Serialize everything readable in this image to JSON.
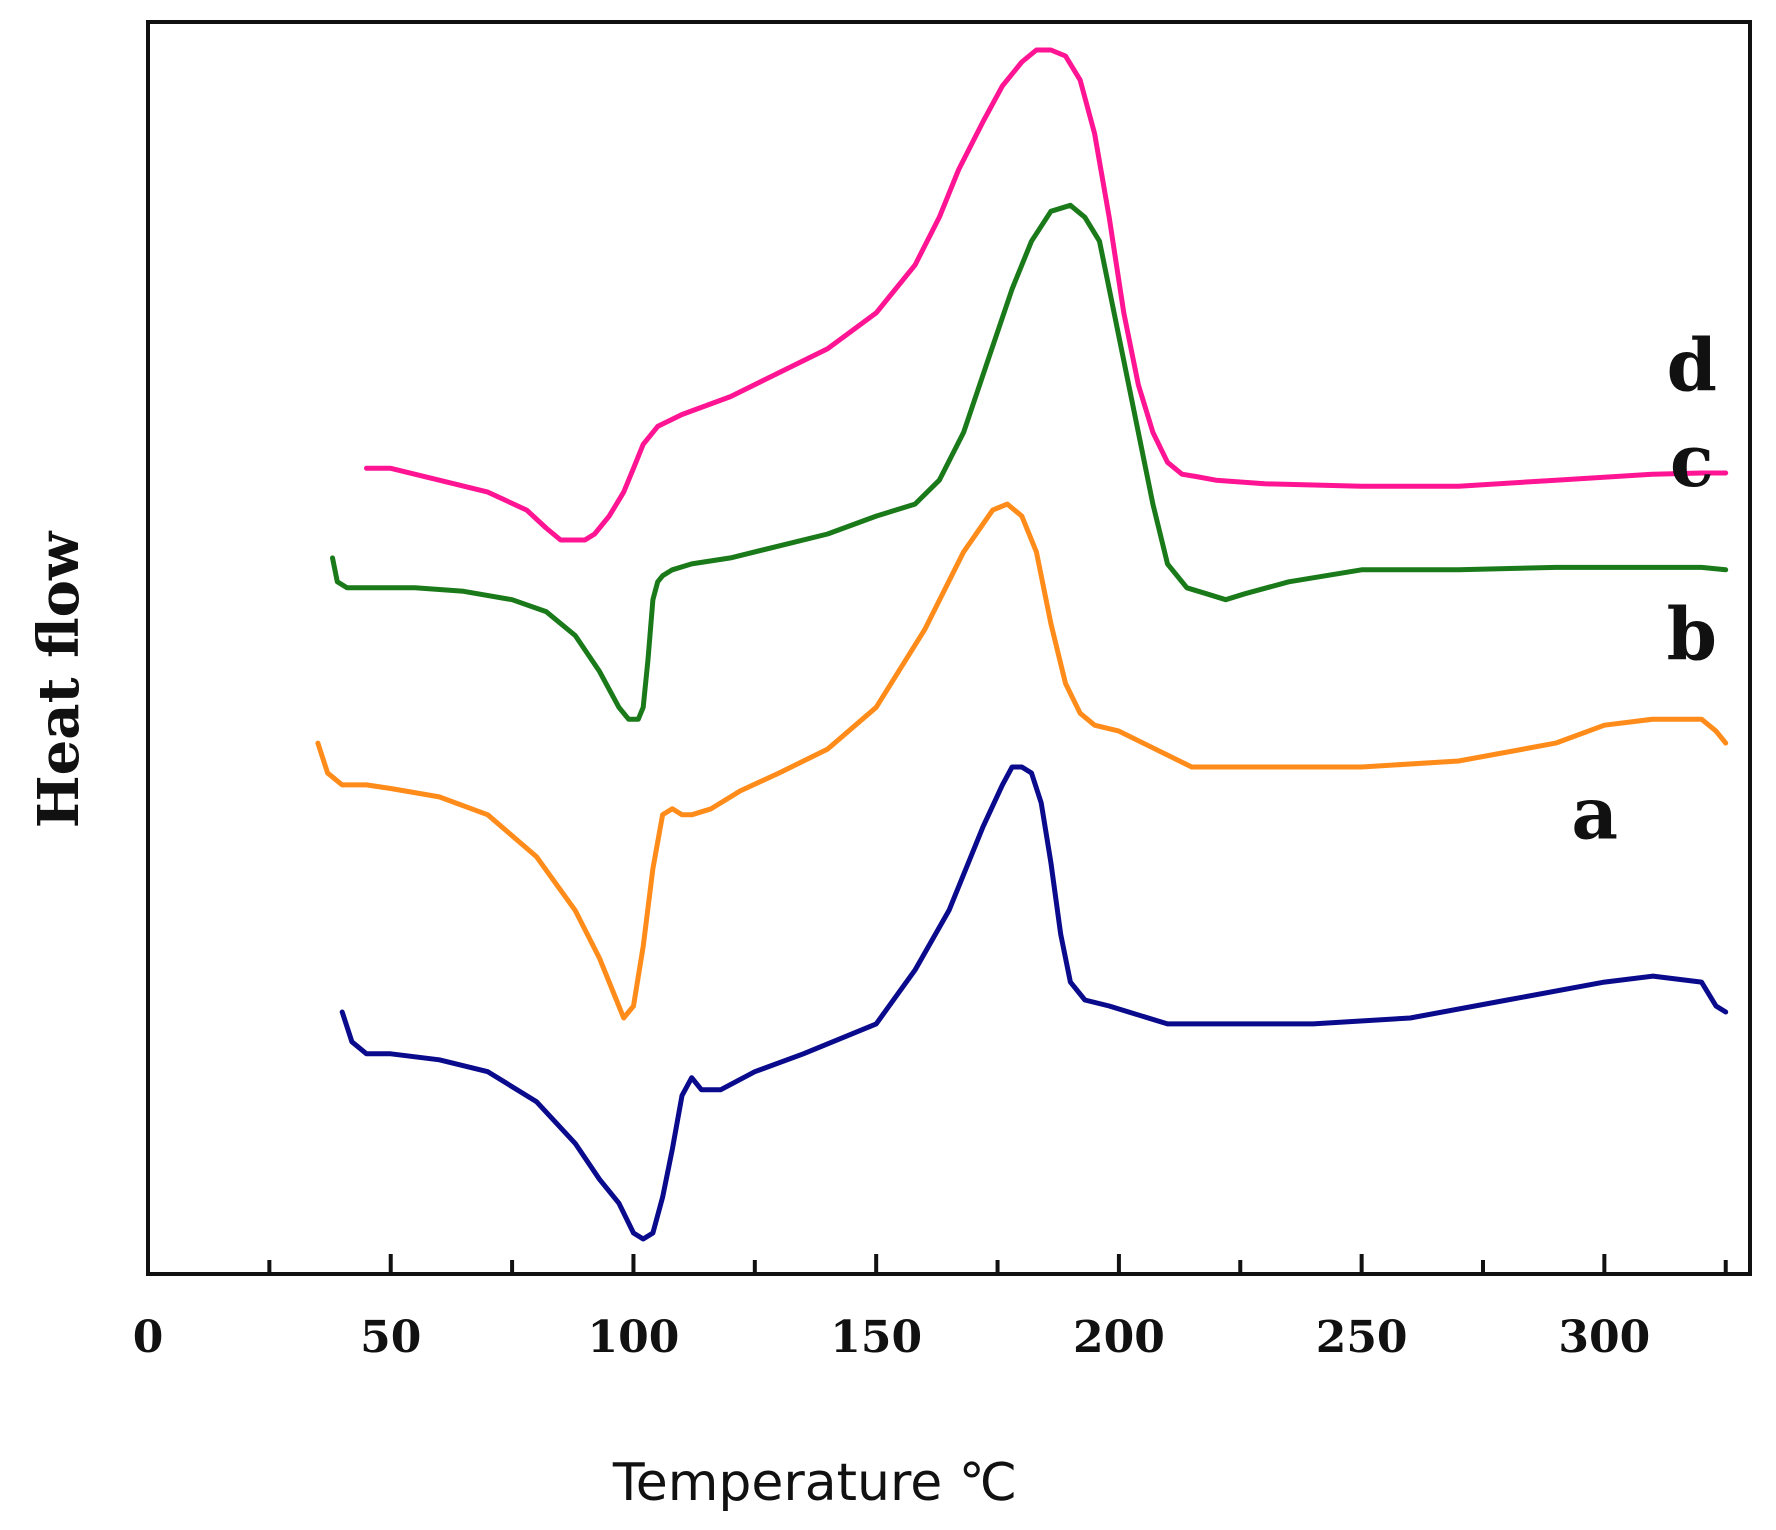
{
  "chart_data": {
    "type": "line",
    "title": "",
    "xlabel": "Temperature ℃",
    "ylabel": "Heat flow",
    "xlim": [
      0,
      330
    ],
    "ylim": [
      0,
      100
    ],
    "xticks": [
      "0",
      "50",
      "100",
      "150",
      "200",
      "250",
      "300"
    ],
    "grid": false,
    "series": [
      {
        "name": "a",
        "color": "#0a0a8c",
        "x": [
          40,
          42,
          45,
          50,
          60,
          70,
          80,
          88,
          93,
          97,
          100,
          102,
          104,
          106,
          108,
          110,
          112,
          114,
          118,
          125,
          135,
          150,
          158,
          165,
          172,
          176,
          178,
          180,
          182,
          184,
          186,
          188,
          190,
          193,
          198,
          210,
          220,
          240,
          260,
          280,
          300,
          310,
          320,
          323,
          325
        ],
        "y": [
          19.5,
          17,
          16,
          16,
          15.5,
          14.5,
          12,
          8.5,
          5.5,
          3.5,
          1,
          0.5,
          1,
          4,
          8,
          12.5,
          14,
          13,
          13,
          14.5,
          16,
          18.5,
          23,
          28,
          35,
          38.5,
          40,
          40,
          39.5,
          37,
          32,
          26,
          22,
          20.5,
          20,
          18.5,
          18.5,
          18.5,
          19,
          20.5,
          22,
          22.5,
          22,
          20,
          19.5
        ]
      },
      {
        "name": "b",
        "color": "#ff8c1a",
        "x": [
          35,
          37,
          40,
          45,
          50,
          60,
          70,
          80,
          88,
          93,
          96,
          98,
          100,
          102,
          104,
          106,
          108,
          110,
          112,
          116,
          122,
          130,
          140,
          150,
          160,
          168,
          174,
          177,
          180,
          183,
          186,
          189,
          192,
          195,
          200,
          215,
          230,
          250,
          270,
          290,
          300,
          310,
          320,
          323,
          325
        ],
        "y": [
          42,
          39.5,
          38.5,
          38.5,
          38.2,
          37.5,
          36,
          32.5,
          28,
          24,
          21,
          19,
          20,
          25,
          31.5,
          36,
          36.5,
          36,
          36,
          36.5,
          38,
          39.5,
          41.5,
          45,
          51.5,
          58,
          61.5,
          62,
          61,
          58,
          52,
          47,
          44.5,
          43.5,
          43,
          40,
          40,
          40,
          40.5,
          42,
          43.5,
          44,
          44,
          43,
          42
        ]
      },
      {
        "name": "c",
        "color": "#1a7a1a",
        "x": [
          38,
          39,
          41,
          45,
          55,
          65,
          75,
          82,
          88,
          93,
          97,
          99,
          101,
          102,
          103,
          104,
          105,
          106,
          108,
          112,
          120,
          130,
          140,
          150,
          158,
          163,
          168,
          173,
          178,
          182,
          186,
          190,
          193,
          196,
          199,
          203,
          207,
          210,
          214,
          218,
          222,
          226,
          235,
          250,
          270,
          290,
          310,
          320,
          325
        ],
        "y": [
          57.5,
          55.5,
          55,
          55,
          55,
          54.7,
          54,
          53,
          51,
          48,
          45,
          44,
          44,
          45,
          49,
          54,
          55.5,
          56,
          56.5,
          57,
          57.5,
          58.5,
          59.5,
          61,
          62,
          64,
          68,
          74,
          80,
          84,
          86.5,
          87,
          86,
          84,
          78,
          70,
          62,
          57,
          55,
          54.5,
          54,
          54.5,
          55.5,
          56.5,
          56.5,
          56.7,
          56.7,
          56.7,
          56.5
        ]
      },
      {
        "name": "d",
        "color": "#ff1493",
        "x": [
          45,
          50,
          60,
          70,
          78,
          82,
          85,
          88,
          90,
          92,
          95,
          98,
          100,
          102,
          105,
          110,
          120,
          130,
          140,
          150,
          158,
          163,
          167,
          172,
          176,
          180,
          183,
          186,
          189,
          192,
          195,
          198,
          201,
          204,
          207,
          210,
          213,
          216,
          220,
          230,
          250,
          270,
          290,
          310,
          320,
          325
        ],
        "y": [
          65,
          65,
          64,
          63,
          61.5,
          60,
          59,
          59,
          59,
          59.5,
          61,
          63,
          65,
          67,
          68.5,
          69.5,
          71,
          73,
          75,
          78,
          82,
          86,
          90,
          94,
          97,
          99,
          100,
          100,
          99.5,
          97.5,
          93,
          86,
          78,
          72,
          68,
          65.5,
          64.5,
          64.3,
          64,
          63.7,
          63.5,
          63.5,
          64,
          64.5,
          64.6,
          64.6
        ]
      }
    ]
  }
}
